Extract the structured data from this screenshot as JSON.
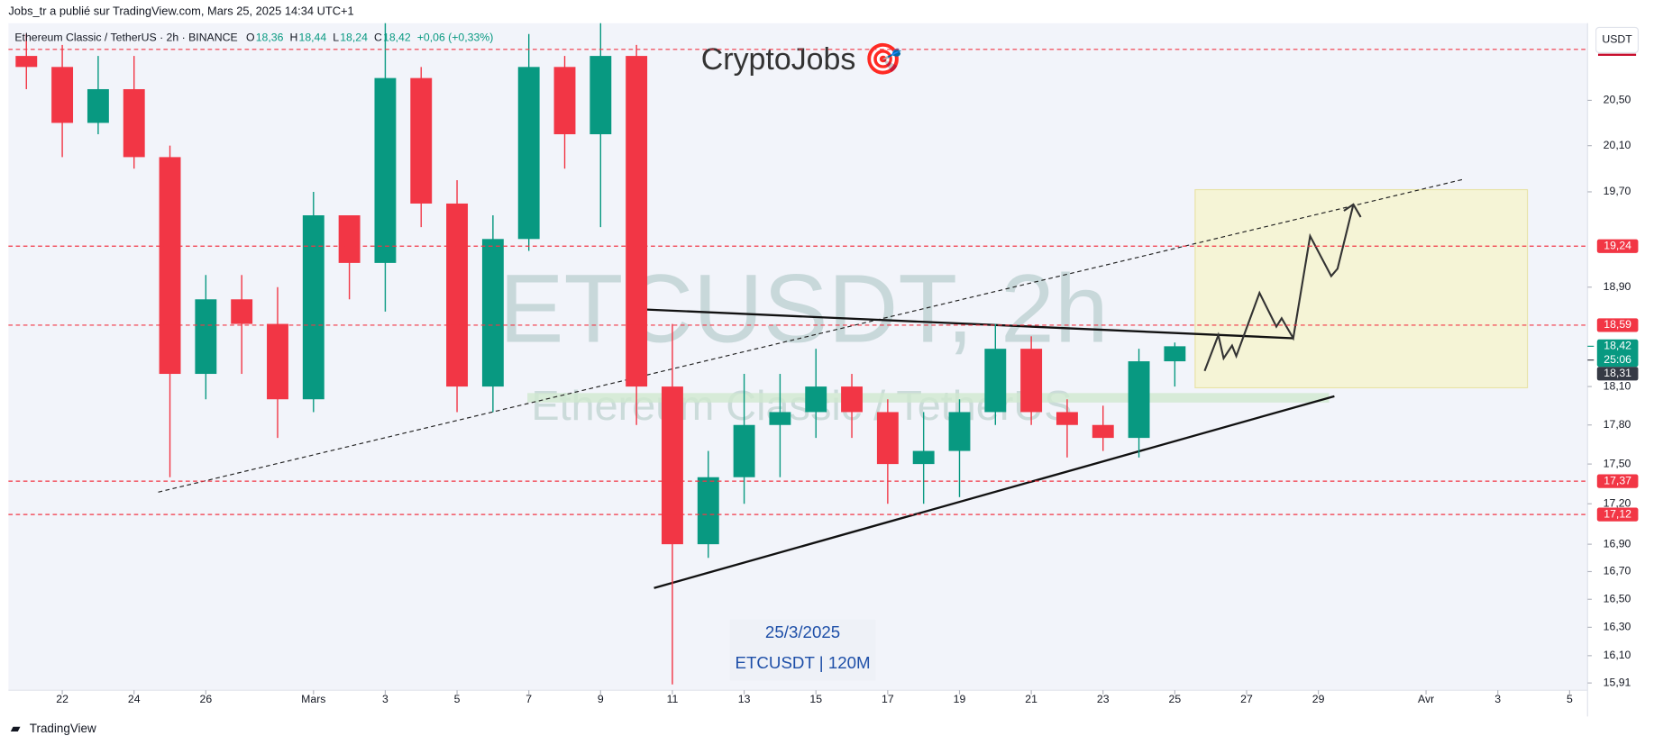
{
  "header": {
    "attribution": "Jobs_tr a publié sur TradingView.com, Mars 25, 2025 14:34 UTC+1",
    "currency": "USDT",
    "symbol": "Ethereum Classic / TetherUS · 2h · BINANCE",
    "ohlc": [
      {
        "key": "O",
        "value": "18,36"
      },
      {
        "key": "H",
        "value": "18,44"
      },
      {
        "key": "L",
        "value": "18,24"
      },
      {
        "key": "C",
        "value": "18,42"
      }
    ],
    "change": "+0,06 (+0,33%)"
  },
  "brand": "CryptoJobs 🎯",
  "watermark": {
    "ticker": "ETCUSDT, 2h",
    "name": "Ethereum Classic / TetherUS"
  },
  "annotations": [
    "25/3/2025",
    "ETCUSDT | 120M"
  ],
  "footer": "TradingView",
  "chart_data": {
    "type": "candlestick",
    "x": [
      "2025-02-21",
      "2025-02-22",
      "2025-02-23",
      "2025-02-24",
      "2025-02-25",
      "2025-02-26",
      "2025-02-27",
      "2025-02-28",
      "2025-03-01",
      "2025-03-02",
      "2025-03-03",
      "2025-03-04",
      "2025-03-05",
      "2025-03-06",
      "2025-03-07",
      "2025-03-08",
      "2025-03-09",
      "2025-03-10",
      "2025-03-11",
      "2025-03-12",
      "2025-03-13",
      "2025-03-14",
      "2025-03-15",
      "2025-03-16",
      "2025-03-17",
      "2025-03-18",
      "2025-03-19",
      "2025-03-20",
      "2025-03-21",
      "2025-03-22",
      "2025-03-23",
      "2025-03-24",
      "2025-03-25"
    ],
    "open": [
      20.9,
      20.8,
      20.3,
      20.6,
      20.0,
      18.2,
      18.8,
      18.6,
      18.0,
      19.5,
      19.1,
      20.7,
      19.6,
      18.1,
      19.3,
      20.8,
      20.2,
      20.9,
      18.1,
      16.9,
      17.4,
      17.8,
      17.9,
      18.1,
      17.9,
      17.5,
      17.6,
      17.9,
      18.4,
      17.9,
      17.8,
      17.7,
      18.3
    ],
    "high": [
      21.1,
      21.0,
      20.9,
      20.9,
      20.1,
      19.0,
      19.0,
      18.9,
      19.7,
      19.5,
      21.2,
      20.8,
      19.8,
      19.5,
      21.1,
      20.9,
      21.2,
      21.0,
      18.6,
      17.6,
      18.2,
      18.2,
      18.4,
      18.2,
      18.0,
      17.9,
      18.0,
      18.6,
      18.5,
      18.0,
      17.95,
      18.4,
      18.45
    ],
    "low": [
      20.6,
      20.0,
      20.2,
      19.9,
      17.4,
      18.0,
      18.2,
      17.7,
      17.9,
      18.8,
      18.7,
      19.4,
      17.9,
      17.9,
      19.2,
      19.9,
      19.4,
      17.8,
      15.9,
      16.8,
      17.2,
      17.4,
      17.7,
      17.7,
      17.2,
      17.2,
      17.25,
      17.8,
      17.8,
      17.55,
      17.6,
      17.55,
      18.1
    ],
    "close": [
      20.8,
      20.3,
      20.6,
      20.0,
      18.2,
      18.8,
      18.6,
      18.0,
      19.5,
      19.1,
      20.7,
      19.6,
      18.1,
      19.3,
      20.8,
      20.2,
      20.9,
      18.1,
      16.9,
      17.4,
      17.8,
      17.9,
      18.1,
      17.9,
      17.5,
      17.6,
      17.9,
      18.4,
      17.9,
      17.8,
      17.7,
      18.3,
      18.42
    ],
    "up_color": "#089981",
    "down_color": "#f23645",
    "log_scale": true,
    "grid": false,
    "xlim": [
      "2025-02-21",
      "2025-04-05"
    ],
    "xticks": [
      {
        "value": "2025-02-22",
        "label": "22"
      },
      {
        "value": "2025-02-24",
        "label": "24"
      },
      {
        "value": "2025-02-26",
        "label": "26"
      },
      {
        "value": "2025-03-01",
        "label": "Mars"
      },
      {
        "value": "2025-03-03",
        "label": "3"
      },
      {
        "value": "2025-03-05",
        "label": "5"
      },
      {
        "value": "2025-03-07",
        "label": "7"
      },
      {
        "value": "2025-03-09",
        "label": "9"
      },
      {
        "value": "2025-03-11",
        "label": "11"
      },
      {
        "value": "2025-03-13",
        "label": "13"
      },
      {
        "value": "2025-03-15",
        "label": "15"
      },
      {
        "value": "2025-03-17",
        "label": "17"
      },
      {
        "value": "2025-03-19",
        "label": "19"
      },
      {
        "value": "2025-03-21",
        "label": "21"
      },
      {
        "value": "2025-03-23",
        "label": "23"
      },
      {
        "value": "2025-03-25",
        "label": "25"
      },
      {
        "value": "2025-03-27",
        "label": "27"
      },
      {
        "value": "2025-03-29",
        "label": "29"
      },
      {
        "value": "2025-04-01",
        "label": "Avr"
      },
      {
        "value": "2025-04-03",
        "label": "3"
      },
      {
        "value": "2025-04-05",
        "label": "5"
      }
    ],
    "ylim": [
      15.86,
      21.2
    ],
    "yticks": [
      {
        "value": 15.91,
        "label": "15,91"
      },
      {
        "value": 16.1,
        "label": "16,10"
      },
      {
        "value": 16.3,
        "label": "16,30"
      },
      {
        "value": 16.5,
        "label": "16,50"
      },
      {
        "value": 16.7,
        "label": "16,70"
      },
      {
        "value": 16.9,
        "label": "16,90"
      },
      {
        "value": 17.2,
        "label": "17,20"
      },
      {
        "value": 17.5,
        "label": "17,50"
      },
      {
        "value": 17.8,
        "label": "17,80"
      },
      {
        "value": 18.1,
        "label": "18,10"
      },
      {
        "value": 18.9,
        "label": "18,90"
      },
      {
        "value": 19.7,
        "label": "19,70"
      },
      {
        "value": 20.1,
        "label": "20,10"
      },
      {
        "value": 20.5,
        "label": "20,50"
      }
    ],
    "levels": [
      {
        "value": 20.96,
        "color": "#f23645"
      },
      {
        "value": 19.24,
        "label": "19,24",
        "color": "#f23645"
      },
      {
        "value": 18.59,
        "label": "18,59",
        "color": "#f23645"
      },
      {
        "value": 17.37,
        "label": "17,37",
        "color": "#f23645"
      },
      {
        "value": 17.12,
        "label": "17,12",
        "color": "#f23645"
      }
    ],
    "price_markers": [
      {
        "value": 18.42,
        "label": "18,42",
        "countdown": "25:06",
        "color": "#089981"
      },
      {
        "value": 18.31,
        "label": "18,31",
        "color": "#363a45"
      }
    ]
  }
}
